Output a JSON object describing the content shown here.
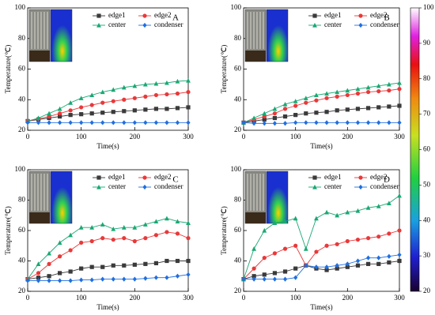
{
  "chart_data": [
    {
      "type": "line",
      "title": "A",
      "xlabel": "Time(s)",
      "ylabel": "Temperature(℃)",
      "x": [
        0,
        20,
        40,
        60,
        80,
        100,
        120,
        140,
        160,
        180,
        200,
        220,
        240,
        260,
        280,
        300
      ],
      "xlim": [
        0,
        300
      ],
      "xticks": [
        0,
        100,
        200,
        300
      ],
      "ylim": [
        20,
        100
      ],
      "yticks": [
        20,
        40,
        60,
        80,
        100
      ],
      "series": [
        {
          "name": "edge1",
          "color": "#3a3a3a",
          "values": [
            26,
            27,
            28,
            29,
            30,
            30.5,
            31,
            31.5,
            32,
            32.5,
            33,
            33.5,
            34,
            34,
            34.5,
            35
          ]
        },
        {
          "name": "edge2",
          "color": "#e8393a",
          "values": [
            26,
            27.5,
            29,
            31,
            33,
            35,
            36.5,
            38,
            39,
            40,
            41,
            42,
            43,
            43.5,
            44,
            45
          ]
        },
        {
          "name": "center",
          "color": "#1aa873",
          "values": [
            26,
            28,
            31,
            34,
            38,
            41,
            43,
            45,
            46.5,
            48,
            49,
            50,
            50.5,
            51,
            52,
            52.5
          ]
        },
        {
          "name": "condenser",
          "color": "#1f6fe0",
          "values": [
            25,
            25,
            25,
            25,
            25,
            25,
            25,
            25,
            25,
            25,
            25,
            25,
            25,
            25,
            25,
            25
          ]
        }
      ]
    },
    {
      "type": "line",
      "title": "B",
      "xlabel": "Time(s)",
      "ylabel": "Temperature(℃)",
      "x": [
        0,
        20,
        40,
        60,
        80,
        100,
        120,
        140,
        160,
        180,
        200,
        220,
        240,
        260,
        280,
        300
      ],
      "xlim": [
        0,
        300
      ],
      "xticks": [
        0,
        100,
        200,
        300
      ],
      "ylim": [
        20,
        100
      ],
      "yticks": [
        20,
        40,
        60,
        80,
        100
      ],
      "series": [
        {
          "name": "edge1",
          "color": "#3a3a3a",
          "values": [
            25,
            26,
            27,
            28,
            29,
            30,
            31,
            31.5,
            32,
            33,
            33.5,
            34,
            34.5,
            35,
            35.5,
            36
          ]
        },
        {
          "name": "edge2",
          "color": "#e8393a",
          "values": [
            25,
            27,
            29,
            31,
            34,
            36,
            38,
            39.5,
            41,
            42,
            43,
            44,
            45,
            45.5,
            46,
            47
          ]
        },
        {
          "name": "center",
          "color": "#1aa873",
          "values": [
            25,
            28,
            31,
            34,
            37,
            39,
            41,
            43,
            44,
            45,
            46,
            47,
            48,
            49,
            50,
            51
          ]
        },
        {
          "name": "condenser",
          "color": "#1f6fe0",
          "values": [
            25,
            24.5,
            24.5,
            24.5,
            24.5,
            25,
            25,
            25,
            25,
            25,
            25,
            25,
            25,
            25,
            25,
            25
          ]
        }
      ]
    },
    {
      "type": "line",
      "title": "C",
      "xlabel": "Time(s)",
      "ylabel": "Temperature(℃)",
      "x": [
        0,
        20,
        40,
        60,
        80,
        100,
        120,
        140,
        160,
        180,
        200,
        220,
        240,
        260,
        280,
        300
      ],
      "xlim": [
        0,
        300
      ],
      "xticks": [
        0,
        100,
        200,
        300
      ],
      "ylim": [
        20,
        100
      ],
      "yticks": [
        20,
        40,
        60,
        80,
        100
      ],
      "series": [
        {
          "name": "edge1",
          "color": "#3a3a3a",
          "values": [
            28,
            29,
            30,
            32,
            33,
            35,
            36,
            36,
            37,
            37,
            37.5,
            38,
            38.5,
            40,
            40,
            40
          ]
        },
        {
          "name": "edge2",
          "color": "#e8393a",
          "values": [
            28,
            32,
            38,
            43,
            47,
            52,
            53,
            55,
            54,
            55,
            53,
            55,
            57,
            59,
            58,
            55
          ]
        },
        {
          "name": "center",
          "color": "#1aa873",
          "values": [
            28,
            38,
            45,
            52,
            57,
            62,
            62,
            64,
            61,
            62,
            62,
            64,
            66,
            68,
            66,
            65
          ]
        },
        {
          "name": "condenser",
          "color": "#1f6fe0",
          "values": [
            27,
            27,
            27,
            27,
            27,
            27.5,
            27.5,
            28,
            28,
            28,
            28,
            28.5,
            29,
            29,
            30,
            31
          ]
        }
      ]
    },
    {
      "type": "line",
      "title": "D",
      "xlabel": "Time(s)",
      "ylabel": "Temperature(℃)",
      "x": [
        0,
        20,
        40,
        60,
        80,
        100,
        120,
        140,
        160,
        180,
        200,
        220,
        240,
        260,
        280,
        300
      ],
      "xlim": [
        0,
        300
      ],
      "xticks": [
        0,
        100,
        200,
        300
      ],
      "ylim": [
        20,
        100
      ],
      "yticks": [
        20,
        40,
        60,
        80,
        100
      ],
      "series": [
        {
          "name": "edge1",
          "color": "#3a3a3a",
          "values": [
            28,
            30,
            31,
            32,
            33,
            35,
            37,
            35,
            34,
            35,
            36,
            37,
            38,
            38,
            39,
            40
          ]
        },
        {
          "name": "edge2",
          "color": "#e8393a",
          "values": [
            28,
            35,
            42,
            45,
            48,
            50,
            37,
            46,
            50,
            51,
            53,
            54,
            55,
            56,
            58,
            60
          ]
        },
        {
          "name": "center",
          "color": "#1aa873",
          "values": [
            28,
            48,
            60,
            65,
            66,
            68,
            48,
            68,
            72,
            70,
            72,
            73,
            75,
            76,
            78,
            83
          ]
        },
        {
          "name": "condenser",
          "color": "#1f6fe0",
          "values": [
            28,
            28,
            28,
            28,
            28,
            29,
            37,
            36,
            36,
            37,
            38,
            40,
            42,
            42,
            43,
            44
          ]
        }
      ]
    }
  ],
  "colorbar": {
    "lim": [
      20,
      100
    ],
    "ticks": [
      20,
      30,
      40,
      50,
      60,
      70,
      80,
      90,
      100
    ]
  }
}
